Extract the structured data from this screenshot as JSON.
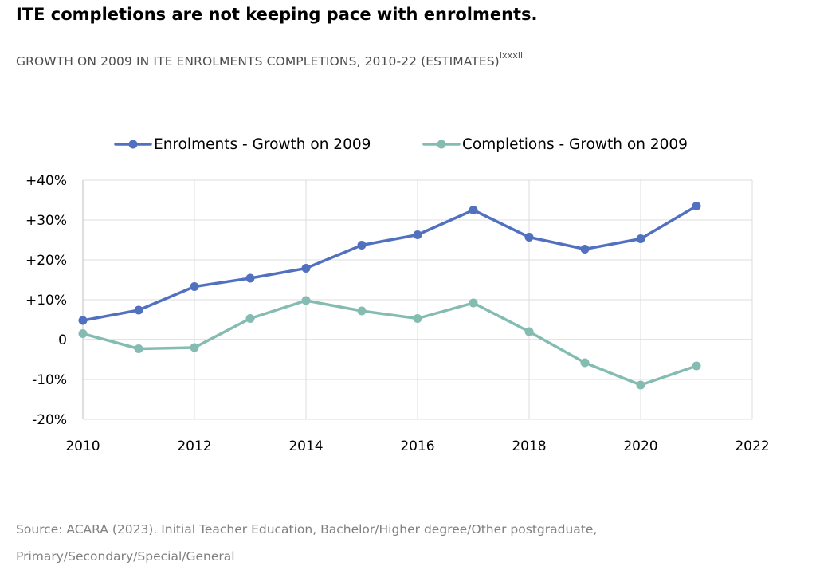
{
  "page": {
    "headline": "ITE completions are not keeping pace with enrolments.",
    "subtitle": "GROWTH ON 2009 IN ITE ENROLMENTS COMPLETIONS, 2010-22 (ESTIMATES)",
    "subtitle_superscript": "lxxxii",
    "source_line1": "Source: ACARA (2023). Initial Teacher Education, Bachelor/Higher degree/Other postgraduate,",
    "source_line2": "Primary/Secondary/Special/General"
  },
  "chart_data": {
    "type": "line",
    "legend_position": "top",
    "grid": true,
    "x": [
      2010,
      2011,
      2012,
      2013,
      2014,
      2015,
      2016,
      2017,
      2018,
      2019,
      2020,
      2021
    ],
    "xlim": [
      2010,
      2022
    ],
    "x_ticks": [
      2010,
      2012,
      2014,
      2016,
      2018,
      2020,
      2022
    ],
    "ylim": [
      -20,
      40
    ],
    "y_ticks": [
      {
        "value": 40,
        "label": "+40%"
      },
      {
        "value": 30,
        "label": "+30%"
      },
      {
        "value": 20,
        "label": "+20%"
      },
      {
        "value": 10,
        "label": "+10%"
      },
      {
        "value": 0,
        "label": "0"
      },
      {
        "value": -10,
        "label": "-10%"
      },
      {
        "value": -20,
        "label": "-20%"
      }
    ],
    "series": [
      {
        "name": "Enrolments - Growth on 2009",
        "color": "#5170c0",
        "values": [
          4.8,
          7.4,
          13.3,
          15.4,
          17.9,
          23.7,
          26.3,
          32.5,
          25.7,
          22.7,
          25.3,
          33.5
        ]
      },
      {
        "name": "Completions - Growth on 2009",
        "color": "#84bcb2",
        "values": [
          1.5,
          -2.3,
          -2.0,
          5.3,
          9.8,
          7.2,
          5.3,
          9.2,
          2.0,
          -5.8,
          -11.4,
          -6.6
        ]
      }
    ]
  }
}
